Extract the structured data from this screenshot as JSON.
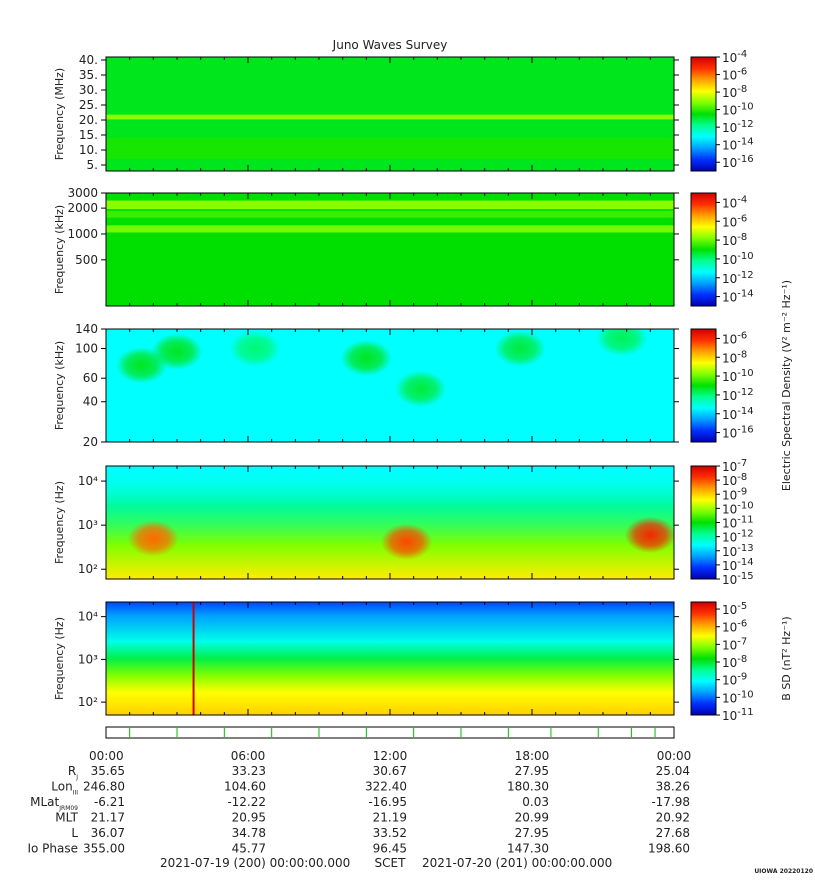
{
  "title": "Juno Waves Survey",
  "colors": {
    "colormap": [
      "#0000b0",
      "#0030ff",
      "#00a0ff",
      "#00ffff",
      "#00ff90",
      "#00e000",
      "#80ff00",
      "#ffff00",
      "#ffa000",
      "#ff3000",
      "#d00000"
    ],
    "frame": "#000000",
    "background": "#ffffff"
  },
  "chart_data": [
    {
      "type": "heatmap",
      "xlabel": "",
      "ylabel": "Frequency (MHz)",
      "y_scale": "linear",
      "y_ticks": [
        {
          "v": 40,
          "label": "40."
        },
        {
          "v": 35,
          "label": "35."
        },
        {
          "v": 30,
          "label": "30."
        },
        {
          "v": 25,
          "label": "25."
        },
        {
          "v": 20,
          "label": "20."
        },
        {
          "v": 15,
          "label": "15."
        },
        {
          "v": 10,
          "label": "10."
        },
        {
          "v": 5,
          "label": "5."
        }
      ],
      "ylim": [
        3,
        41
      ],
      "colorbar": {
        "label": "",
        "scale": "log",
        "range_exp": [
          -17,
          -4
        ],
        "ticks_exp": [
          -4,
          -6,
          -8,
          -10,
          -12,
          -14,
          -16
        ]
      },
      "features": [
        {
          "kind": "background",
          "level": 0.48
        },
        {
          "kind": "band",
          "y_center": 21,
          "half_width": 0.8,
          "level": 0.62
        },
        {
          "kind": "band",
          "y_center": 10.5,
          "half_width": 3.5,
          "level": 0.52
        }
      ]
    },
    {
      "type": "heatmap",
      "xlabel": "",
      "ylabel": "Frequency (kHz)",
      "y_scale": "log",
      "y_ticks": [
        {
          "v": 3000,
          "label": "3000"
        },
        {
          "v": 2000,
          "label": "2000"
        },
        {
          "v": 1000,
          "label": "1000"
        },
        {
          "v": 500,
          "label": "500"
        }
      ],
      "ylim": [
        145,
        3000
      ],
      "colorbar": {
        "label": "",
        "scale": "log",
        "range_exp": [
          -15,
          -3
        ],
        "ticks_exp": [
          -4,
          -6,
          -8,
          -10,
          -12,
          -14
        ]
      },
      "features": [
        {
          "kind": "background",
          "level": 0.5
        },
        {
          "kind": "band",
          "y_center": 2200,
          "half_width": 250,
          "level": 0.62
        },
        {
          "kind": "band",
          "y_center": 1150,
          "half_width": 110,
          "level": 0.6
        },
        {
          "kind": "band",
          "y_center": 1700,
          "half_width": 150,
          "level": 0.55
        }
      ]
    },
    {
      "type": "heatmap",
      "xlabel": "",
      "ylabel": "Frequency (kHz)",
      "y_scale": "log",
      "y_ticks": [
        {
          "v": 140,
          "label": "140"
        },
        {
          "v": 100,
          "label": "100"
        },
        {
          "v": 60,
          "label": "60"
        },
        {
          "v": 40,
          "label": "40"
        },
        {
          "v": 20,
          "label": "20"
        }
      ],
      "ylim": [
        20,
        140
      ],
      "colorbar": {
        "label": "Electric Spectral Density (V² m⁻² Hz⁻¹)",
        "scale": "log",
        "range_exp": [
          -17,
          -5
        ],
        "ticks_exp": [
          -6,
          -8,
          -10,
          -12,
          -14,
          -16
        ]
      },
      "features": [
        {
          "kind": "background",
          "level": 0.3
        },
        {
          "kind": "blob",
          "t": 1.5,
          "f": 75,
          "level": 0.48
        },
        {
          "kind": "blob",
          "t": 3.0,
          "f": 95,
          "level": 0.48
        },
        {
          "kind": "blob",
          "t": 6.3,
          "f": 100,
          "level": 0.42
        },
        {
          "kind": "blob",
          "t": 11.0,
          "f": 85,
          "level": 0.48
        },
        {
          "kind": "blob",
          "t": 13.3,
          "f": 50,
          "level": 0.46
        },
        {
          "kind": "blob",
          "t": 17.5,
          "f": 100,
          "level": 0.46
        },
        {
          "kind": "blob",
          "t": 21.8,
          "f": 120,
          "level": 0.44
        }
      ]
    },
    {
      "type": "heatmap",
      "xlabel": "",
      "ylabel": "Frequency (Hz)",
      "y_scale": "log",
      "y_ticks": [
        {
          "v": 10000,
          "label": "10⁴"
        },
        {
          "v": 1000,
          "label": "10³"
        },
        {
          "v": 100,
          "label": "10²"
        }
      ],
      "ylim": [
        60,
        22000
      ],
      "colorbar": {
        "label": "",
        "scale": "log",
        "range_exp": [
          -15,
          -7
        ],
        "ticks_exp": [
          -7,
          -8,
          -9,
          -10,
          -11,
          -12,
          -13,
          -14,
          -15
        ]
      },
      "features": [
        {
          "kind": "background",
          "level": 0.3
        },
        {
          "kind": "lowfreq_gradient",
          "level": 0.6
        },
        {
          "kind": "blob",
          "t": 2.0,
          "f": 500,
          "level": 0.85
        },
        {
          "kind": "blob",
          "t": 12.7,
          "f": 420,
          "level": 0.88
        },
        {
          "kind": "blob",
          "t": 23.0,
          "f": 600,
          "level": 0.92
        }
      ]
    },
    {
      "type": "heatmap",
      "xlabel": "",
      "ylabel": "Frequency (Hz)",
      "y_scale": "log",
      "y_ticks": [
        {
          "v": 10000,
          "label": "10⁴"
        },
        {
          "v": 1000,
          "label": "10³"
        },
        {
          "v": 100,
          "label": "10²"
        }
      ],
      "ylim": [
        50,
        22000
      ],
      "colorbar": {
        "label": "B SD (nT² Hz⁻¹)",
        "scale": "log",
        "range_exp": [
          -11,
          -4.6
        ],
        "ticks_exp": [
          -5,
          -6,
          -7,
          -8,
          -9,
          -10,
          -11
        ]
      },
      "features": [
        {
          "kind": "vertical_gradient",
          "level": 0.2
        },
        {
          "kind": "line",
          "t": 3.7,
          "level": 1.0
        }
      ]
    }
  ],
  "x_axis": {
    "range_hours": [
      0,
      24
    ],
    "tick_labels": [
      {
        "t": 0,
        "label": "00:00"
      },
      {
        "t": 6,
        "label": "06:00"
      },
      {
        "t": 12,
        "label": "12:00"
      },
      {
        "t": 18,
        "label": "18:00"
      },
      {
        "t": 24,
        "label": "00:00"
      }
    ]
  },
  "ephemeris": {
    "rows": [
      {
        "label": "R",
        "sub": "J",
        "values": [
          "35.65",
          "33.23",
          "30.67",
          "27.95",
          "25.04"
        ]
      },
      {
        "label": "Lon",
        "sub": "III",
        "values": [
          "246.80",
          "104.60",
          "322.40",
          "180.30",
          "38.26"
        ]
      },
      {
        "label": "MLat",
        "sub": "JRM09",
        "values": [
          "-6.21",
          "-12.22",
          "-16.95",
          "0.03",
          "-17.98"
        ]
      },
      {
        "label": "MLT",
        "sub": "",
        "values": [
          "21.17",
          "20.95",
          "21.19",
          "20.99",
          "20.92"
        ]
      },
      {
        "label": "L",
        "sub": "",
        "values": [
          "36.07",
          "34.78",
          "33.52",
          "27.95",
          "27.68"
        ]
      },
      {
        "label": "Io Phase",
        "sub": "",
        "values": [
          "355.00",
          "45.77",
          "96.45",
          "147.30",
          "198.60"
        ]
      }
    ]
  },
  "footer": {
    "start": "2021-07-19 (200) 00:00:00.000",
    "scet": "SCET",
    "end": "2021-07-20 (201) 00:00:00.000"
  },
  "watermark": "UIOWA 20220120"
}
